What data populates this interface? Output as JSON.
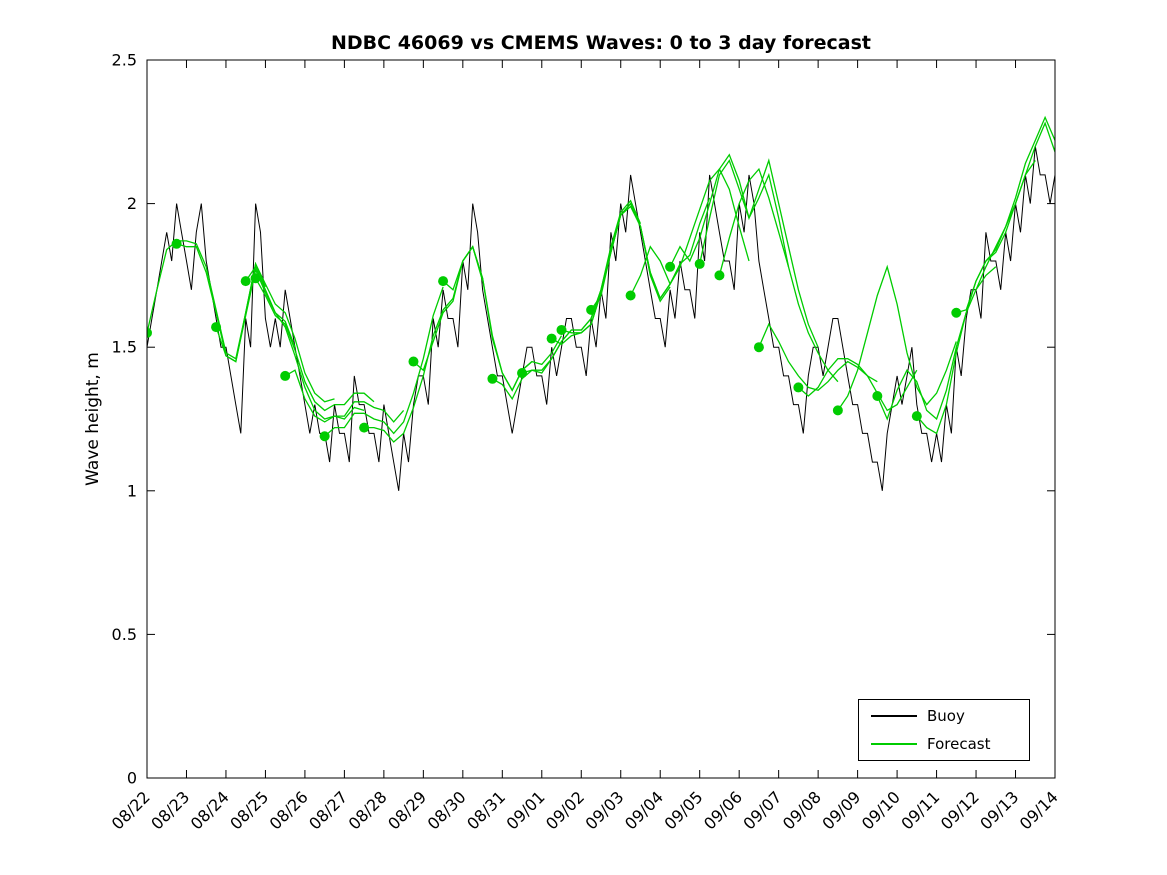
{
  "figure": {
    "title": "NDBC 46069 vs CMEMS Waves: 0 to 3 day forecast",
    "ylabel": "Wave height, m",
    "background": "#ffffff",
    "axis_color": "#000000"
  },
  "legend": {
    "position": "lower right",
    "items": [
      {
        "label": "Buoy",
        "color": "#000000"
      },
      {
        "label": "Forecast",
        "color": "#00cc00"
      }
    ]
  },
  "chart_data": {
    "type": "line",
    "title": "NDBC 46069 vs CMEMS Waves: 0 to 3 day forecast",
    "xlabel": "",
    "ylabel": "Wave height, m",
    "ylim": [
      0,
      2.5
    ],
    "yticks": [
      0,
      0.5,
      1,
      1.5,
      2,
      2.5
    ],
    "ytick_labels": [
      "0",
      "0.5",
      "1",
      "1.5",
      "2",
      "2.5"
    ],
    "xlim": [
      0,
      23
    ],
    "x_unit": "days since 08/22",
    "xticks": [
      0,
      1,
      2,
      3,
      4,
      5,
      6,
      7,
      8,
      9,
      10,
      11,
      12,
      13,
      14,
      15,
      16,
      17,
      18,
      19,
      20,
      21,
      22,
      23
    ],
    "xtick_labels": [
      "08/22",
      "08/23",
      "08/24",
      "08/25",
      "08/26",
      "08/27",
      "08/28",
      "08/29",
      "08/30",
      "08/31",
      "09/01",
      "09/02",
      "09/03",
      "09/04",
      "09/05",
      "09/06",
      "09/07",
      "09/08",
      "09/09",
      "09/10",
      "09/11",
      "09/12",
      "09/13",
      "09/14"
    ],
    "xtick_rotation_deg": 45,
    "grid": false,
    "legend_position": "lower right",
    "series": [
      {
        "name": "Buoy",
        "color": "#000000",
        "line_width": 1,
        "x_start": 0,
        "dt": 0.125,
        "values": [
          1.5,
          1.6,
          1.7,
          1.8,
          1.9,
          1.8,
          2.0,
          1.9,
          1.8,
          1.7,
          1.9,
          2.0,
          1.8,
          1.7,
          1.6,
          1.5,
          1.5,
          1.4,
          1.3,
          1.2,
          1.6,
          1.5,
          2.0,
          1.9,
          1.6,
          1.5,
          1.6,
          1.5,
          1.7,
          1.6,
          1.5,
          1.4,
          1.3,
          1.2,
          1.3,
          1.2,
          1.2,
          1.1,
          1.3,
          1.2,
          1.2,
          1.1,
          1.4,
          1.3,
          1.3,
          1.2,
          1.2,
          1.1,
          1.3,
          1.2,
          1.1,
          1.0,
          1.2,
          1.1,
          1.3,
          1.4,
          1.4,
          1.3,
          1.6,
          1.5,
          1.7,
          1.6,
          1.6,
          1.5,
          1.8,
          1.7,
          2.0,
          1.9,
          1.7,
          1.6,
          1.5,
          1.4,
          1.4,
          1.3,
          1.2,
          1.3,
          1.4,
          1.5,
          1.5,
          1.4,
          1.4,
          1.3,
          1.5,
          1.4,
          1.5,
          1.6,
          1.6,
          1.5,
          1.5,
          1.4,
          1.6,
          1.5,
          1.7,
          1.6,
          1.9,
          1.8,
          2.0,
          1.9,
          2.1,
          2.0,
          1.9,
          1.8,
          1.7,
          1.6,
          1.6,
          1.5,
          1.7,
          1.6,
          1.8,
          1.7,
          1.7,
          1.6,
          1.9,
          1.8,
          2.1,
          2.0,
          1.9,
          1.8,
          1.8,
          1.7,
          2.0,
          1.9,
          2.1,
          2.0,
          1.8,
          1.7,
          1.6,
          1.5,
          1.5,
          1.4,
          1.4,
          1.3,
          1.3,
          1.2,
          1.4,
          1.5,
          1.5,
          1.4,
          1.5,
          1.6,
          1.6,
          1.5,
          1.4,
          1.3,
          1.3,
          1.2,
          1.2,
          1.1,
          1.1,
          1.0,
          1.2,
          1.3,
          1.4,
          1.3,
          1.4,
          1.5,
          1.3,
          1.2,
          1.2,
          1.1,
          1.2,
          1.1,
          1.3,
          1.2,
          1.5,
          1.4,
          1.6,
          1.7,
          1.7,
          1.6,
          1.9,
          1.8,
          1.8,
          1.7,
          1.9,
          1.8,
          2.0,
          1.9,
          2.1,
          2.0,
          2.2,
          2.1,
          2.1,
          2.0,
          2.1,
          2.2
        ]
      },
      {
        "name": "Forecast",
        "color": "#00cc00",
        "line_width": 1.3,
        "marker": "filled-circle-at-start",
        "marker_radius_px": 5,
        "dt": 0.25,
        "runs": [
          {
            "t0": 0.0,
            "values": [
              1.55,
              1.7,
              1.84,
              1.87,
              1.87,
              1.86,
              1.78,
              1.63,
              1.48,
              1.46,
              1.62,
              1.79,
              1.71
            ]
          },
          {
            "t0": 0.75,
            "values": [
              1.86,
              1.85,
              1.85,
              1.76,
              1.62,
              1.47,
              1.45,
              1.61,
              1.77,
              1.69,
              1.62,
              1.59,
              1.5
            ]
          },
          {
            "t0": 1.75,
            "values": [
              1.57,
              1.47,
              1.45,
              1.62,
              1.79,
              1.72,
              1.65,
              1.62,
              1.53,
              1.41,
              1.34,
              1.31,
              1.32
            ]
          },
          {
            "t0": 2.5,
            "values": [
              1.73,
              1.78,
              1.7,
              1.62,
              1.57,
              1.47,
              1.36,
              1.28,
              1.25,
              1.26,
              1.25,
              1.29,
              1.28
            ]
          },
          {
            "t0": 2.75,
            "values": [
              1.74,
              1.68,
              1.61,
              1.58,
              1.49,
              1.38,
              1.31,
              1.28,
              1.3,
              1.3,
              1.34,
              1.34,
              1.31
            ]
          },
          {
            "t0": 3.5,
            "values": [
              1.4,
              1.42,
              1.32,
              1.26,
              1.24,
              1.26,
              1.26,
              1.31,
              1.31,
              1.29,
              1.28,
              1.24,
              1.28
            ]
          },
          {
            "t0": 4.5,
            "values": [
              1.19,
              1.22,
              1.22,
              1.27,
              1.27,
              1.25,
              1.24,
              1.2,
              1.24,
              1.34,
              1.46,
              1.61,
              1.71
            ]
          },
          {
            "t0": 5.5,
            "values": [
              1.22,
              1.22,
              1.21,
              1.17,
              1.2,
              1.29,
              1.4,
              1.54,
              1.63,
              1.67,
              1.8,
              1.85,
              1.73
            ]
          },
          {
            "t0": 6.75,
            "values": [
              1.45,
              1.42,
              1.52,
              1.62,
              1.66,
              1.8,
              1.85,
              1.74,
              1.54,
              1.41,
              1.35,
              1.42,
              1.45
            ]
          },
          {
            "t0": 7.5,
            "values": [
              1.73,
              1.7,
              1.8,
              1.85,
              1.74,
              1.53,
              1.41,
              1.35,
              1.42,
              1.45,
              1.44,
              1.48,
              1.54
            ]
          },
          {
            "t0": 8.75,
            "values": [
              1.39,
              1.37,
              1.32,
              1.39,
              1.42,
              1.42,
              1.46,
              1.52,
              1.56,
              1.56,
              1.6,
              1.7,
              1.84
            ]
          },
          {
            "t0": 9.5,
            "values": [
              1.41,
              1.42,
              1.41,
              1.46,
              1.52,
              1.56,
              1.56,
              1.6,
              1.7,
              1.85,
              1.97,
              2.01,
              1.93
            ]
          },
          {
            "t0": 10.25,
            "values": [
              1.53,
              1.51,
              1.54,
              1.55,
              1.58,
              1.69,
              1.83,
              1.96,
              1.99,
              1.92,
              1.75,
              1.66,
              1.71
            ]
          },
          {
            "t0": 10.5,
            "values": [
              1.56,
              1.55,
              1.55,
              1.58,
              1.69,
              1.84,
              1.96,
              2.0,
              1.92,
              1.76,
              1.67,
              1.72,
              1.78
            ]
          },
          {
            "t0": 11.25,
            "values": [
              1.63,
              1.68,
              1.83,
              1.96,
              2.0,
              1.92,
              1.76,
              1.67,
              1.72,
              1.79,
              1.82,
              1.93,
              2.02
            ]
          },
          {
            "t0": 12.25,
            "values": [
              1.68,
              1.75,
              1.85,
              1.8,
              1.72,
              1.78,
              1.88,
              1.98,
              2.08,
              2.12,
              2.05,
              1.92,
              1.8
            ]
          },
          {
            "t0": 13.25,
            "values": [
              1.78,
              1.85,
              1.8,
              1.88,
              2.0,
              2.12,
              2.17,
              2.08,
              1.95,
              2.02,
              2.1,
              1.95,
              1.78
            ]
          },
          {
            "t0": 14.0,
            "values": [
              1.79,
              1.95,
              2.1,
              2.15,
              2.05,
              1.95,
              2.05,
              2.15,
              2.0,
              1.85,
              1.7,
              1.58,
              1.5
            ]
          },
          {
            "t0": 14.5,
            "values": [
              1.75,
              1.88,
              2.0,
              2.08,
              2.12,
              2.02,
              1.9,
              1.78,
              1.65,
              1.55,
              1.48,
              1.42,
              1.38
            ]
          },
          {
            "t0": 15.5,
            "values": [
              1.5,
              1.58,
              1.52,
              1.45,
              1.4,
              1.36,
              1.35,
              1.38,
              1.42,
              1.45,
              1.43,
              1.4,
              1.38
            ]
          },
          {
            "t0": 16.5,
            "values": [
              1.36,
              1.33,
              1.36,
              1.42,
              1.46,
              1.46,
              1.44,
              1.4,
              1.34,
              1.28,
              1.3,
              1.36,
              1.42
            ]
          },
          {
            "t0": 17.5,
            "values": [
              1.28,
              1.33,
              1.42,
              1.55,
              1.68,
              1.78,
              1.65,
              1.48,
              1.36,
              1.3,
              1.34,
              1.42,
              1.52
            ]
          },
          {
            "t0": 18.5,
            "values": [
              1.33,
              1.25,
              1.35,
              1.42,
              1.38,
              1.28,
              1.25,
              1.35,
              1.5,
              1.62,
              1.7,
              1.75,
              1.78
            ]
          },
          {
            "t0": 19.5,
            "values": [
              1.26,
              1.22,
              1.2,
              1.3,
              1.48,
              1.62,
              1.73,
              1.8,
              1.83,
              1.9,
              2.0,
              2.1,
              2.15
            ]
          },
          {
            "t0": 20.5,
            "values": [
              1.62,
              1.63,
              1.73,
              1.8,
              1.84,
              1.92,
              2.02,
              2.14,
              2.22,
              2.3,
              2.22,
              2.15,
              2.18
            ]
          },
          {
            "t0": 21.0,
            "marker": false,
            "values": [
              1.7,
              1.78,
              1.85,
              1.92,
              2.0,
              2.1,
              2.2,
              2.28,
              2.18,
              2.1,
              2.05,
              2.08,
              2.12
            ]
          }
        ]
      }
    ]
  }
}
